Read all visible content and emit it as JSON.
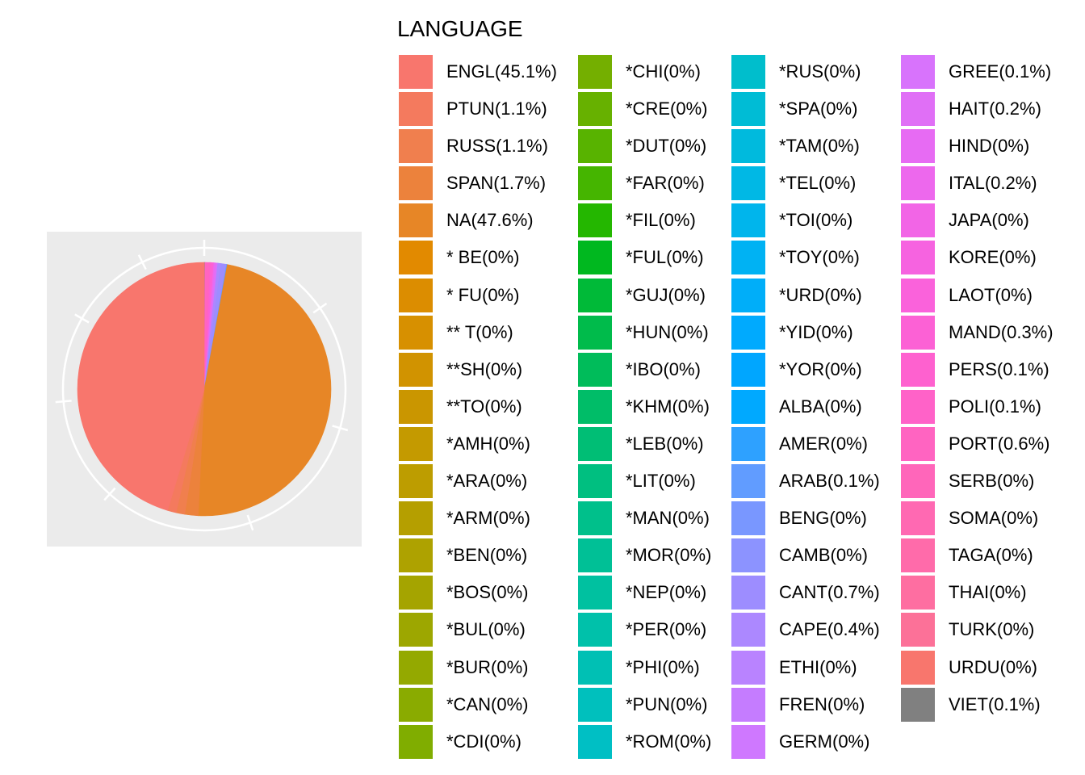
{
  "chart_data": {
    "type": "pie",
    "legend_title": "LANGUAGE",
    "legend_position": "right",
    "background": "#EBEBEB",
    "grid": true,
    "categories": [
      {
        "label": "ENGL(45.1%)",
        "value": 45.1,
        "color": "#F8766D"
      },
      {
        "label": "PTUN(1.1%)",
        "value": 1.1,
        "color": "#F47A5E"
      },
      {
        "label": "RUSS(1.1%)",
        "value": 1.1,
        "color": "#F07F4E"
      },
      {
        "label": "SPAN(1.7%)",
        "value": 1.7,
        "color": "#EC823C"
      },
      {
        "label": "NA(47.6%)",
        "value": 47.6,
        "color": "#E78626"
      },
      {
        "label": "* BE(0%)",
        "value": 0,
        "color": "#E28A00"
      },
      {
        "label": "* FU(0%)",
        "value": 0,
        "color": "#DC8D00"
      },
      {
        "label": "** T(0%)",
        "value": 0,
        "color": "#D79000"
      },
      {
        "label": "**SH(0%)",
        "value": 0,
        "color": "#D19300"
      },
      {
        "label": "**TO(0%)",
        "value": 0,
        "color": "#CA9600"
      },
      {
        "label": "*AMH(0%)",
        "value": 0,
        "color": "#C49A00"
      },
      {
        "label": "*ARA(0%)",
        "value": 0,
        "color": "#BD9D00"
      },
      {
        "label": "*ARM(0%)",
        "value": 0,
        "color": "#B59F00"
      },
      {
        "label": "*BEN(0%)",
        "value": 0,
        "color": "#AEA200"
      },
      {
        "label": "*BOS(0%)",
        "value": 0,
        "color": "#A5A400"
      },
      {
        "label": "*BUL(0%)",
        "value": 0,
        "color": "#9DA700"
      },
      {
        "label": "*BUR(0%)",
        "value": 0,
        "color": "#94A900"
      },
      {
        "label": "*CAN(0%)",
        "value": 0,
        "color": "#8AAB00"
      },
      {
        "label": "*CDI(0%)",
        "value": 0,
        "color": "#80AD00"
      },
      {
        "label": "*CHI(0%)",
        "value": 0,
        "color": "#74AF00"
      },
      {
        "label": "*CRE(0%)",
        "value": 0,
        "color": "#67B100"
      },
      {
        "label": "*DUT(0%)",
        "value": 0,
        "color": "#58B300"
      },
      {
        "label": "*FAR(0%)",
        "value": 0,
        "color": "#45B500"
      },
      {
        "label": "*FIL(0%)",
        "value": 0,
        "color": "#24B700"
      },
      {
        "label": "*FUL(0%)",
        "value": 0,
        "color": "#00B81F"
      },
      {
        "label": "*GUJ(0%)",
        "value": 0,
        "color": "#00BA38"
      },
      {
        "label": "*HUN(0%)",
        "value": 0,
        "color": "#00BB4B"
      },
      {
        "label": "*IBO(0%)",
        "value": 0,
        "color": "#00BC5A"
      },
      {
        "label": "*KHM(0%)",
        "value": 0,
        "color": "#00BD68"
      },
      {
        "label": "*LEB(0%)",
        "value": 0,
        "color": "#00BE75"
      },
      {
        "label": "*LIT(0%)",
        "value": 0,
        "color": "#00BF80"
      },
      {
        "label": "*MAN(0%)",
        "value": 0,
        "color": "#00C08B"
      },
      {
        "label": "*MOR(0%)",
        "value": 0,
        "color": "#00C096"
      },
      {
        "label": "*NEP(0%)",
        "value": 0,
        "color": "#00C1A0"
      },
      {
        "label": "*PER(0%)",
        "value": 0,
        "color": "#00C1AA"
      },
      {
        "label": "*PHI(0%)",
        "value": 0,
        "color": "#00C0B4"
      },
      {
        "label": "*PUN(0%)",
        "value": 0,
        "color": "#00C0BD"
      },
      {
        "label": "*ROM(0%)",
        "value": 0,
        "color": "#00BFC4"
      },
      {
        "label": "*RUS(0%)",
        "value": 0,
        "color": "#00BECC"
      },
      {
        "label": "*SPA(0%)",
        "value": 0,
        "color": "#00BCD5"
      },
      {
        "label": "*TAM(0%)",
        "value": 0,
        "color": "#00BADD"
      },
      {
        "label": "*TEL(0%)",
        "value": 0,
        "color": "#00B8E5"
      },
      {
        "label": "*TOI(0%)",
        "value": 0,
        "color": "#00B5EC"
      },
      {
        "label": "*TOY(0%)",
        "value": 0,
        "color": "#00B2F3"
      },
      {
        "label": "*URD(0%)",
        "value": 0,
        "color": "#00AEF9"
      },
      {
        "label": "*YID(0%)",
        "value": 0,
        "color": "#00AAFE"
      },
      {
        "label": "*YOR(0%)",
        "value": 0,
        "color": "#00A6FF"
      },
      {
        "label": "ALBA(0%)",
        "value": 0,
        "color": "#00A9FF"
      },
      {
        "label": "AMER(0%)",
        "value": 0,
        "color": "#2EA1FF"
      },
      {
        "label": "ARAB(0.1%)",
        "value": 0.1,
        "color": "#619CFF"
      },
      {
        "label": "BENG(0%)",
        "value": 0,
        "color": "#7997FF"
      },
      {
        "label": "CAMB(0%)",
        "value": 0,
        "color": "#8C93FF"
      },
      {
        "label": "CANT(0.7%)",
        "value": 0.7,
        "color": "#9D8DFF"
      },
      {
        "label": "CAPE(0.4%)",
        "value": 0.4,
        "color": "#AC88FF"
      },
      {
        "label": "ETHI(0%)",
        "value": 0,
        "color": "#B983FF"
      },
      {
        "label": "FREN(0%)",
        "value": 0,
        "color": "#C57CFF"
      },
      {
        "label": "GERM(0%)",
        "value": 0,
        "color": "#CF78FF"
      },
      {
        "label": "GREE(0.1%)",
        "value": 0.1,
        "color": "#D873FC"
      },
      {
        "label": "HAIT(0.2%)",
        "value": 0.2,
        "color": "#E06FF6"
      },
      {
        "label": "HIND(0%)",
        "value": 0,
        "color": "#E76BF3"
      },
      {
        "label": "ITAL(0.2%)",
        "value": 0.2,
        "color": "#ED68ED"
      },
      {
        "label": "JAPA(0%)",
        "value": 0,
        "color": "#F265E6"
      },
      {
        "label": "KORE(0%)",
        "value": 0,
        "color": "#F663E0"
      },
      {
        "label": "LAOT(0%)",
        "value": 0,
        "color": "#FA62DB"
      },
      {
        "label": "MAND(0.3%)",
        "value": 0.3,
        "color": "#FC61D5"
      },
      {
        "label": "PERS(0.1%)",
        "value": 0.1,
        "color": "#FE61CF"
      },
      {
        "label": "POLI(0.1%)",
        "value": 0.1,
        "color": "#FF62C8"
      },
      {
        "label": "PORT(0.6%)",
        "value": 0.6,
        "color": "#FF64C1"
      },
      {
        "label": "SERB(0%)",
        "value": 0,
        "color": "#FF66BA"
      },
      {
        "label": "SOMA(0%)",
        "value": 0,
        "color": "#FF69B2"
      },
      {
        "label": "TAGA(0%)",
        "value": 0,
        "color": "#FF6BAA"
      },
      {
        "label": "THAI(0%)",
        "value": 0,
        "color": "#FE6EA1"
      },
      {
        "label": "TURK(0%)",
        "value": 0,
        "color": "#FC7198"
      },
      {
        "label": "URDU(0%)",
        "value": 0,
        "color": "#F8766D"
      },
      {
        "label": "VIET(0.1%)",
        "value": 0.1,
        "color": "#808080"
      }
    ]
  }
}
